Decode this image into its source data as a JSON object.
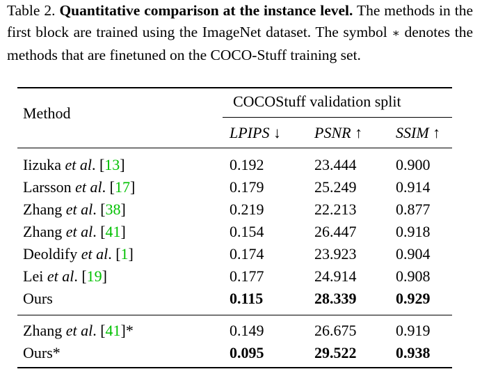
{
  "caption": {
    "label": "Table 2.",
    "title": "Quantitative comparison at the instance level.",
    "text_1": "The methods in the first block are trained using the ImageNet dataset. The symbol",
    "symbol": "∗",
    "text_2": "denotes the methods that are finetuned on the COCO-Stuff training set."
  },
  "header": {
    "method": "Method",
    "group": "COCOStuff validation split",
    "metrics": [
      {
        "name": "LPIPS",
        "arrow": "↓"
      },
      {
        "name": "PSNR",
        "arrow": "↑"
      },
      {
        "name": "SSIM",
        "arrow": "↑"
      }
    ]
  },
  "rows": [
    {
      "name": "Iizuka",
      "etal": "et al",
      "dot": ".",
      "ref": "13",
      "suffix": "",
      "lpips": "0.192",
      "psnr": "23.444",
      "ssim": "0.900",
      "bold": false
    },
    {
      "name": "Larsson",
      "etal": "et al",
      "dot": ".",
      "ref": "17",
      "suffix": "",
      "lpips": "0.179",
      "psnr": "25.249",
      "ssim": "0.914",
      "bold": false
    },
    {
      "name": "Zhang",
      "etal": "et al",
      "dot": ".",
      "ref": "38",
      "suffix": "",
      "lpips": "0.219",
      "psnr": "22.213",
      "ssim": "0.877",
      "bold": false
    },
    {
      "name": "Zhang",
      "etal": "et al",
      "dot": ".",
      "ref": "41",
      "suffix": "",
      "lpips": "0.154",
      "psnr": "26.447",
      "ssim": "0.918",
      "bold": false
    },
    {
      "name": "Deoldify",
      "etal": "et al",
      "dot": ".",
      "ref": "1",
      "suffix": "",
      "lpips": "0.174",
      "psnr": "23.923",
      "ssim": "0.904",
      "bold": false
    },
    {
      "name": "Lei",
      "etal": "et al",
      "dot": ".",
      "ref": "19",
      "suffix": "",
      "lpips": "0.177",
      "psnr": "24.914",
      "ssim": "0.908",
      "bold": false
    },
    {
      "name": "Ours",
      "etal": "",
      "dot": "",
      "ref": "",
      "suffix": "",
      "lpips": "0.115",
      "psnr": "28.339",
      "ssim": "0.929",
      "bold": true
    },
    {
      "name": "Zhang",
      "etal": "et al",
      "dot": ".",
      "ref": "41",
      "suffix": "*",
      "lpips": "0.149",
      "psnr": "26.675",
      "ssim": "0.919",
      "bold": false
    },
    {
      "name": "Ours*",
      "etal": "",
      "dot": "",
      "ref": "",
      "suffix": "",
      "lpips": "0.095",
      "psnr": "29.522",
      "ssim": "0.938",
      "bold": true
    }
  ],
  "colors": {
    "reference_link": "#00c000",
    "text": "#000000"
  }
}
